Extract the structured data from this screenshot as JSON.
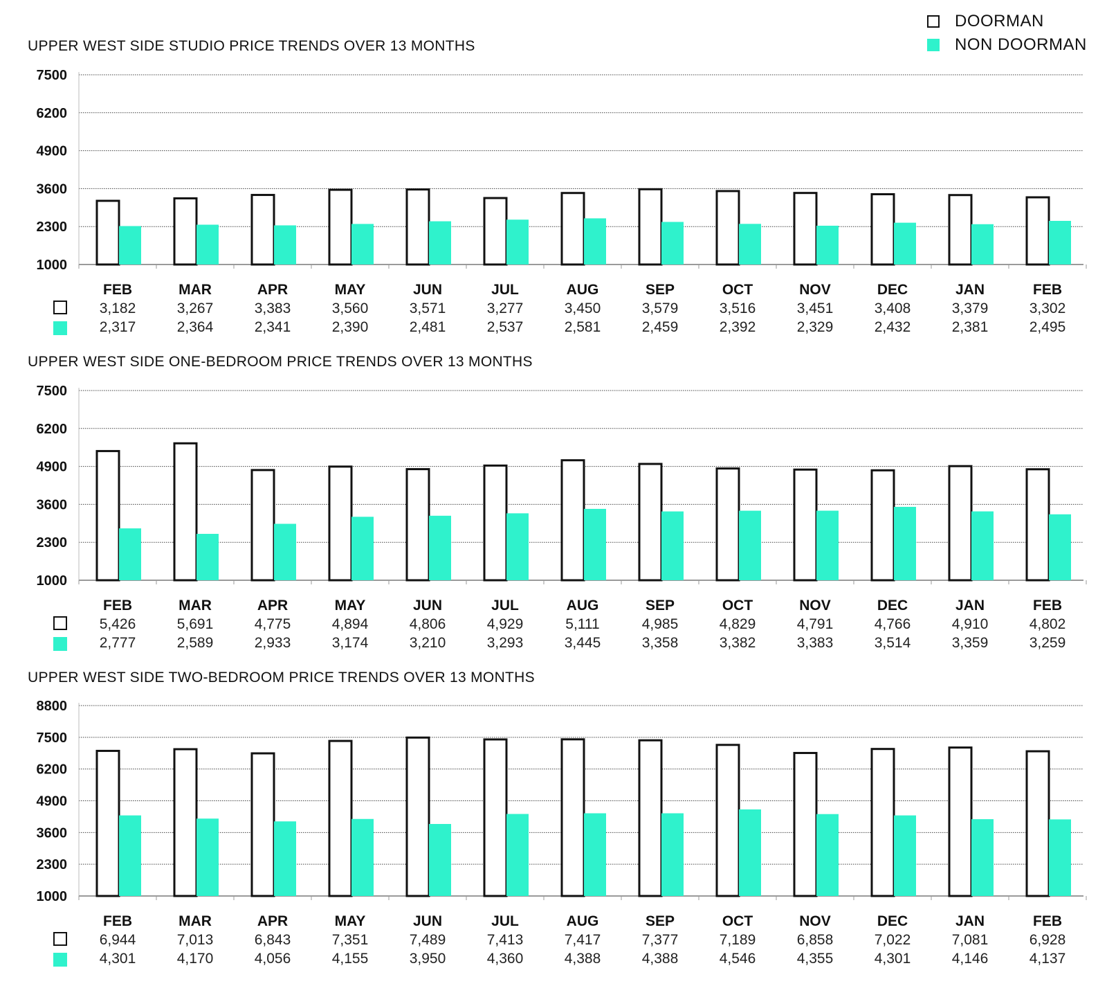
{
  "colors": {
    "doorman_fill": "#ffffff",
    "doorman_stroke": "#111111",
    "non_doorman": "#2ff2cc",
    "gridline": "#444444"
  },
  "legend": {
    "doorman_label": "DOORMAN",
    "non_doorman_label": "NON DOORMAN"
  },
  "chart_data": [
    {
      "type": "bar",
      "title": "UPPER WEST SIDE STUDIO PRICE TRENDS OVER 13 MONTHS",
      "categories": [
        "FEB",
        "MAR",
        "APR",
        "MAY",
        "JUN",
        "JUL",
        "AUG",
        "SEP",
        "OCT",
        "NOV",
        "DEC",
        "JAN",
        "FEB"
      ],
      "yticks": [
        1000,
        2300,
        3600,
        4900,
        6200,
        7500
      ],
      "ytick_labels": [
        "1000",
        "2300",
        "3600",
        "4900",
        "6200",
        "7500"
      ],
      "ylim": [
        1000,
        7500
      ],
      "series": [
        {
          "name": "DOORMAN",
          "values": [
            3182,
            3267,
            3383,
            3560,
            3571,
            3277,
            3450,
            3579,
            3516,
            3451,
            3408,
            3379,
            3302
          ],
          "labels": [
            "3,182",
            "3,267",
            "3,383",
            "3,560",
            "3,571",
            "3,277",
            "3,450",
            "3,579",
            "3,516",
            "3,451",
            "3,408",
            "3,379",
            "3,302"
          ]
        },
        {
          "name": "NON DOORMAN",
          "values": [
            2317,
            2364,
            2341,
            2390,
            2481,
            2537,
            2581,
            2459,
            2392,
            2329,
            2432,
            2381,
            2495
          ],
          "labels": [
            "2,317",
            "2,364",
            "2,341",
            "2,390",
            "2,481",
            "2,537",
            "2,581",
            "2,459",
            "2,392",
            "2,329",
            "2,432",
            "2,381",
            "2,495"
          ]
        }
      ]
    },
    {
      "type": "bar",
      "title": "UPPER WEST SIDE ONE-BEDROOM PRICE TRENDS OVER 13 MONTHS",
      "categories": [
        "FEB",
        "MAR",
        "APR",
        "MAY",
        "JUN",
        "JUL",
        "AUG",
        "SEP",
        "OCT",
        "NOV",
        "DEC",
        "JAN",
        "FEB"
      ],
      "yticks": [
        1000,
        2300,
        3600,
        4900,
        6200,
        7500
      ],
      "ytick_labels": [
        "1000",
        "2300",
        "3600",
        "4900",
        "6200",
        "7500"
      ],
      "ylim": [
        1000,
        7500
      ],
      "series": [
        {
          "name": "DOORMAN",
          "values": [
            5426,
            5691,
            4775,
            4894,
            4806,
            4929,
            5111,
            4985,
            4829,
            4791,
            4766,
            4910,
            4802
          ],
          "labels": [
            "5,426",
            "5,691",
            "4,775",
            "4,894",
            "4,806",
            "4,929",
            "5,111",
            "4,985",
            "4,829",
            "4,791",
            "4,766",
            "4,910",
            "4,802"
          ]
        },
        {
          "name": "NON DOORMAN",
          "values": [
            2777,
            2589,
            2933,
            3174,
            3210,
            3293,
            3445,
            3358,
            3382,
            3383,
            3514,
            3359,
            3259
          ],
          "labels": [
            "2,777",
            "2,589",
            "2,933",
            "3,174",
            "3,210",
            "3,293",
            "3,445",
            "3,358",
            "3,382",
            "3,383",
            "3,514",
            "3,359",
            "3,259"
          ]
        }
      ]
    },
    {
      "type": "bar",
      "title": "UPPER WEST SIDE TWO-BEDROOM PRICE TRENDS OVER 13 MONTHS",
      "categories": [
        "FEB",
        "MAR",
        "APR",
        "MAY",
        "JUN",
        "JUL",
        "AUG",
        "SEP",
        "OCT",
        "NOV",
        "DEC",
        "JAN",
        "FEB"
      ],
      "yticks": [
        1000,
        2300,
        3600,
        4900,
        6200,
        7500,
        8800
      ],
      "ytick_labels": [
        "1000",
        "2300",
        "3600",
        "4900",
        "6200",
        "7500",
        "8800"
      ],
      "ylim": [
        1000,
        8800
      ],
      "series": [
        {
          "name": "DOORMAN",
          "values": [
            6944,
            7013,
            6843,
            7351,
            7489,
            7413,
            7417,
            7377,
            7189,
            6858,
            7022,
            7081,
            6928
          ],
          "labels": [
            "6,944",
            "7,013",
            "6,843",
            "7,351",
            "7,489",
            "7,413",
            "7,417",
            "7,377",
            "7,189",
            "6,858",
            "7,022",
            "7,081",
            "6,928"
          ]
        },
        {
          "name": "NON DOORMAN",
          "values": [
            4301,
            4170,
            4056,
            4155,
            3950,
            4360,
            4388,
            4388,
            4546,
            4355,
            4301,
            4146,
            4137
          ],
          "labels": [
            "4,301",
            "4,170",
            "4,056",
            "4,155",
            "3,950",
            "4,360",
            "4,388",
            "4,388",
            "4,546",
            "4,355",
            "4,301",
            "4,146",
            "4,137"
          ]
        }
      ]
    }
  ]
}
